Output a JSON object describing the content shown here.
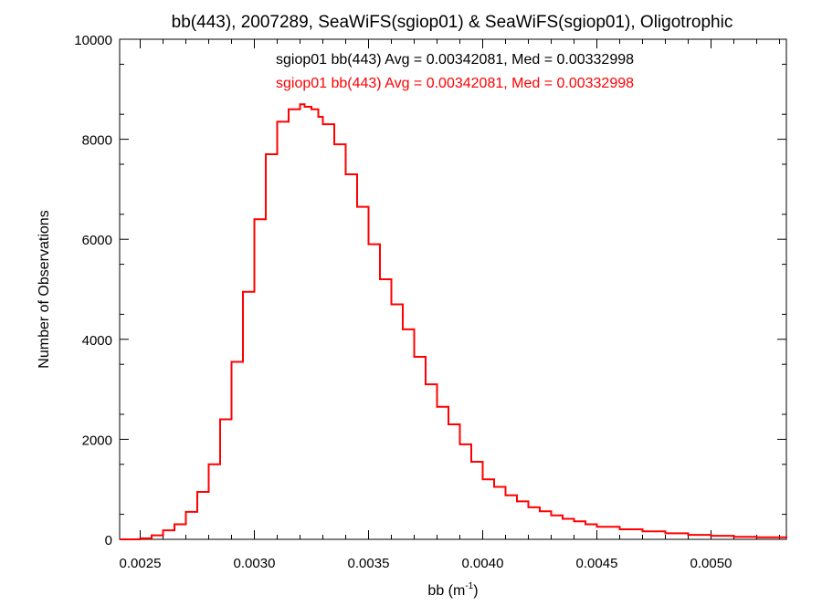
{
  "chart_data": {
    "type": "line",
    "title": "bb(443), 2007289, SeaWiFS(sgiop01) & SeaWiFS(sgiop01), Oligotrophic",
    "xlabel_base": "bb (m",
    "xlabel_sup": "-1",
    "xlabel_close": ")",
    "ylabel": "Number of Observations",
    "xlim": [
      0.00241,
      0.00533
    ],
    "ylim": [
      0,
      10000
    ],
    "xticks": [
      0.0025,
      0.003,
      0.0035,
      0.004,
      0.0045,
      0.005
    ],
    "xtick_labels": [
      "0.0025",
      "0.0030",
      "0.0035",
      "0.0040",
      "0.0045",
      "0.0050"
    ],
    "yticks": [
      0,
      2000,
      4000,
      6000,
      8000,
      10000
    ],
    "ytick_labels": [
      "0",
      "2000",
      "4000",
      "6000",
      "8000",
      "10000"
    ],
    "grid": false,
    "legend": [
      {
        "text": "sgiop01 bb(443) Avg = 0.00342081, Med = 0.00332998",
        "color": "#000000"
      },
      {
        "text": "sgiop01 bb(443) Avg = 0.00342081, Med = 0.00332998",
        "color": "#ff0000"
      }
    ],
    "series": [
      {
        "color": "#ff0000",
        "step": true,
        "x": [
          0.00241,
          0.0025,
          0.00255,
          0.0026,
          0.00265,
          0.0027,
          0.00275,
          0.0028,
          0.00285,
          0.0029,
          0.00295,
          0.003,
          0.00305,
          0.0031,
          0.00315,
          0.0032,
          0.00322,
          0.00325,
          0.00328,
          0.0033,
          0.00335,
          0.0034,
          0.00345,
          0.0035,
          0.00355,
          0.0036,
          0.00365,
          0.0037,
          0.00375,
          0.0038,
          0.00385,
          0.0039,
          0.00395,
          0.004,
          0.00405,
          0.0041,
          0.00415,
          0.0042,
          0.00425,
          0.0043,
          0.00435,
          0.0044,
          0.00445,
          0.0045,
          0.0046,
          0.0047,
          0.0048,
          0.0049,
          0.005,
          0.0051,
          0.0052,
          0.00533
        ],
        "y": [
          0,
          20,
          80,
          180,
          300,
          550,
          950,
          1500,
          2400,
          3550,
          4950,
          6400,
          7700,
          8350,
          8600,
          8700,
          8650,
          8600,
          8450,
          8300,
          7900,
          7300,
          6650,
          5900,
          5200,
          4700,
          4200,
          3650,
          3100,
          2650,
          2300,
          1900,
          1550,
          1200,
          1050,
          880,
          760,
          640,
          560,
          480,
          410,
          360,
          300,
          250,
          200,
          160,
          120,
          90,
          70,
          50,
          40,
          20
        ]
      }
    ]
  }
}
